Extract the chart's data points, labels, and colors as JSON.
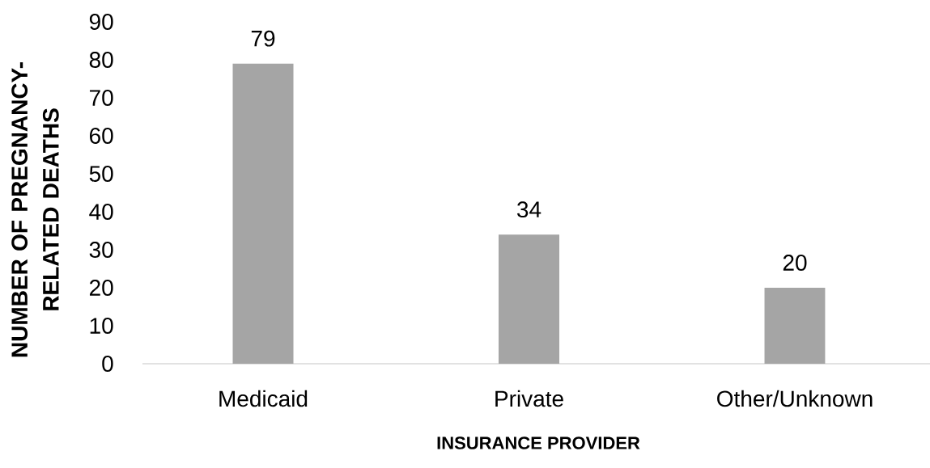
{
  "chart_data": {
    "type": "bar",
    "xlabel": "INSURANCE PROVIDER",
    "ylabel": "NUMBER OF PREGNANCY-RELATED DEATHS",
    "categories": [
      "Medicaid",
      "Private",
      "Other/Unknown"
    ],
    "values": [
      79,
      34,
      20
    ],
    "color": "#a5a5a5",
    "ylim": [
      0,
      90
    ],
    "yticks": [
      0,
      10,
      20,
      30,
      40,
      50,
      60,
      70,
      80,
      90
    ],
    "data_labels": true
  }
}
